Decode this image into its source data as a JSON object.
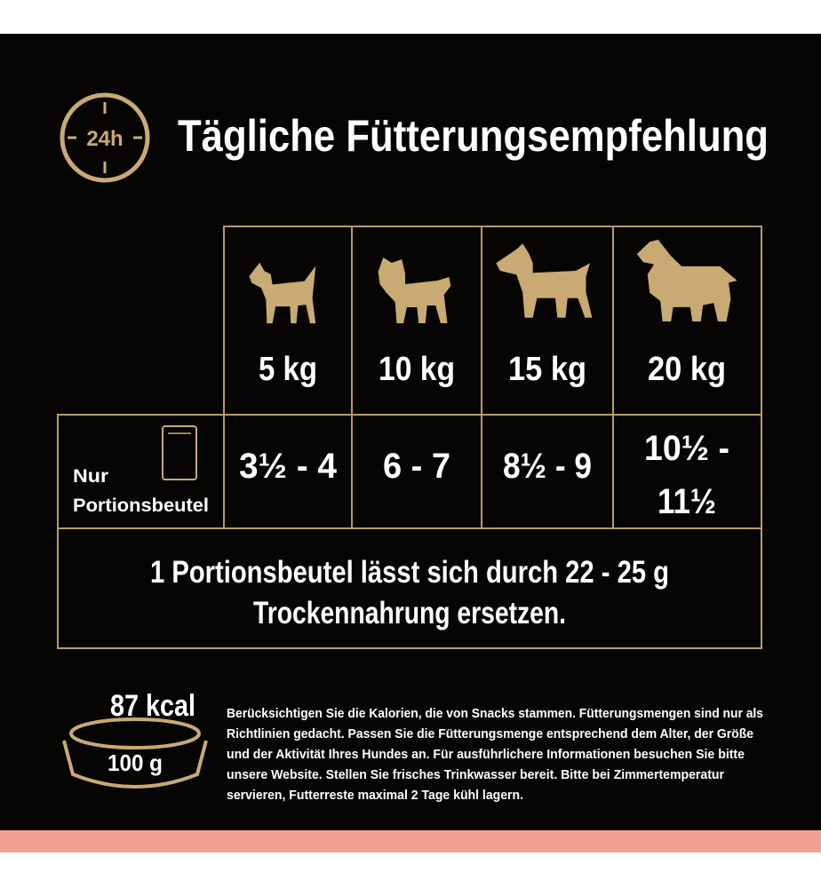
{
  "header": {
    "icon_label": "24h",
    "title": "Tägliche Fütterungsempfehlung"
  },
  "table": {
    "weights": [
      "5 kg",
      "10 kg",
      "15 kg",
      "20 kg"
    ],
    "row_label": [
      "Nur",
      "Portionsbeutel"
    ],
    "portions": [
      "3½ - 4",
      "6 - 7",
      "8½ - 9",
      [
        "10½ -",
        "11½"
      ]
    ],
    "note": [
      "1 Portionsbeutel lässt sich durch 22 - 25 g",
      "Trockennahrung ersetzen."
    ]
  },
  "nutrition": {
    "energy": "87 kcal",
    "amount": "100 g"
  },
  "footnote": [
    "Berücksichtigen Sie die Kalorien, die von Snacks stammen. Fütterungsmengen sind nur als",
    "Richtlinien gedacht. Passen Sie die Fütterungsmenge entsprechend dem Alter, der Größe",
    "und der Aktivität Ihres Hundes an. Für ausführlichere Informationen besuchen Sie bitte",
    "unsere Website. Stellen Sie frisches Trinkwasser bereit. Bitte bei Zimmertemperatur",
    "servieren, Futterreste maximal 2 Tage kühl lagern."
  ]
}
